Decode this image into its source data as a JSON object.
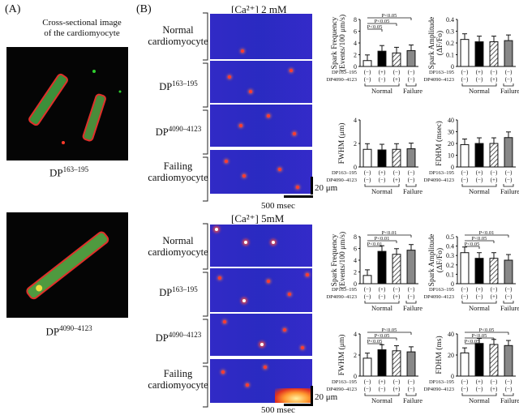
{
  "panelA": {
    "label": "(A)",
    "caption_line1": "Cross-sectional image",
    "caption_line2": "of the cardiomyocyte",
    "image1_label_base": "DP",
    "image1_label_sup": "163–195",
    "image2_label_base": "DP",
    "image2_label_sup": "4090–4123"
  },
  "panelB": {
    "label": "(B)",
    "top_conc": "[Ca²⁺] 2 mM",
    "bottom_conc": "[Ca²⁺] 5mM",
    "conditions": [
      "Normal cardiomyocyte",
      "DP163–195",
      "DP4090–4123",
      "Failing cardiomyocyte"
    ],
    "cond_normal_l1": "Normal",
    "cond_normal_l2": "cardiomyocyte",
    "cond_dp1_base": "DP",
    "cond_dp1_sup": "163–195",
    "cond_dp2_base": "DP",
    "cond_dp2_sup": "4090–4123",
    "cond_fail_l1": "Failing",
    "cond_fail_l2": "cardiomyocyte",
    "scale_um": "20 μm",
    "scale_ms": "500 msec"
  },
  "charts_top": {
    "freq": {
      "ylabel_l1": "Spark Frequency",
      "ylabel_l2": "(Events/100 μm/s)",
      "ylim": [
        0,
        8
      ],
      "ticks": [
        "0",
        "2",
        "4",
        "6",
        "8"
      ],
      "values": [
        1.0,
        2.6,
        2.3,
        2.7
      ],
      "sig": [
        "P<0.05",
        "P<0.05",
        "P<0.05"
      ]
    },
    "amp": {
      "ylabel_l1": "Spark Amplitude",
      "ylabel_l2": "(ΔF/Fo)",
      "ylim": [
        0,
        0.4
      ],
      "ticks": [
        "0",
        "0.1",
        "0.2",
        "0.3",
        "0.4"
      ],
      "values": [
        0.23,
        0.21,
        0.21,
        0.22
      ]
    },
    "fwhm": {
      "ylabel": "FWHM (μm)",
      "ylim": [
        0,
        4
      ],
      "ticks": [
        "0",
        "2",
        "4"
      ],
      "values": [
        1.5,
        1.45,
        1.5,
        1.55
      ]
    },
    "fdhm": {
      "ylabel": "FDHM (msec)",
      "ylim": [
        0,
        40
      ],
      "ticks": [
        "0",
        "10",
        "20",
        "30",
        "40"
      ],
      "values": [
        19,
        20,
        20,
        25
      ]
    },
    "rows": {
      "dp1": "DP163–195",
      "dp2": "DP4090–4123",
      "dp1_vals": [
        "(−)",
        "(+)",
        "(−)",
        "(−)"
      ],
      "dp2_vals": [
        "(−)",
        "(−)",
        "(+)",
        "(−)"
      ],
      "group_normal": "Normal",
      "group_failure": "Failure"
    }
  },
  "charts_bottom": {
    "freq": {
      "ylabel_l1": "Spark Frequency",
      "ylabel_l2": "(Events/100 μm/s)",
      "ylim": [
        0,
        8
      ],
      "ticks": [
        "0",
        "2",
        "4",
        "6",
        "8"
      ],
      "values": [
        1.4,
        5.5,
        5.0,
        5.7
      ],
      "sig": [
        "P<0.01",
        "P<0.01",
        "P<0.01"
      ]
    },
    "amp": {
      "ylabel_l1": "Spark Amplitude",
      "ylabel_l2": "(ΔF/Fo)",
      "ylim": [
        0,
        0.5
      ],
      "ticks": [
        "0",
        "0.1",
        "0.2",
        "0.3",
        "0.4",
        "0.5"
      ],
      "values": [
        0.33,
        0.27,
        0.27,
        0.25
      ],
      "sig": [
        "P<0.01",
        "P<0.05",
        "P<0.05"
      ]
    },
    "fwhm": {
      "ylabel": "FWHM (μm)",
      "ylim": [
        0,
        4
      ],
      "ticks": [
        "0",
        "2",
        "4"
      ],
      "values": [
        1.7,
        2.5,
        2.4,
        2.3
      ],
      "sig": [
        "P<0.05",
        "P<0.05",
        "P<0.05"
      ]
    },
    "fdhm": {
      "ylabel": "FDHM (ms)",
      "ylim": [
        0,
        40
      ],
      "ticks": [
        "0",
        "20",
        "40"
      ],
      "values": [
        22,
        31,
        30,
        29
      ],
      "sig": [
        "P<0.05",
        "P<0.05",
        "P<0.05"
      ]
    },
    "rows": {
      "dp1": "DP163–195",
      "dp2": "DP4090–4123",
      "dp1_vals": [
        "(−)",
        "(+)",
        "(−)",
        "(−)"
      ],
      "dp2_vals": [
        "(−)",
        "(−)",
        "(+)",
        "(−)"
      ],
      "group_normal": "Normal",
      "group_failure": "Failure"
    }
  }
}
